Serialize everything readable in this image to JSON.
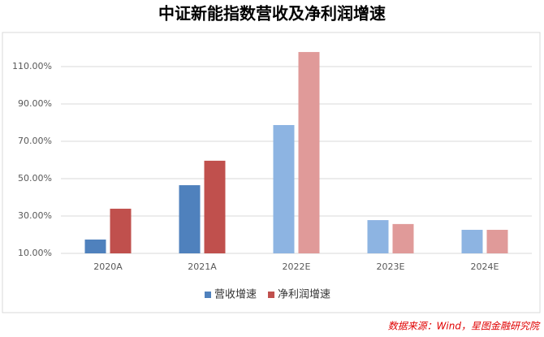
{
  "chart_data": {
    "type": "bar",
    "title": "中证新能指数营收及净利润增速",
    "categories": [
      "2020A",
      "2021A",
      "2022E",
      "2023E",
      "2024E"
    ],
    "series": [
      {
        "name": "营收增速",
        "color": "#4f81bd",
        "colors": [
          "#4f81bd",
          "#4f81bd",
          "#8db4e2",
          "#8db4e2",
          "#8db4e2"
        ],
        "values": [
          17.4,
          46.5,
          78.7,
          27.8,
          22.6
        ]
      },
      {
        "name": "净利润增速",
        "color": "#c0504d",
        "colors": [
          "#c0504d",
          "#c0504d",
          "#e09a99",
          "#e09a99",
          "#e09a99"
        ],
        "values": [
          33.9,
          59.6,
          117.8,
          25.7,
          22.6
        ]
      }
    ],
    "ylim": [
      10,
      130
    ],
    "yticks": [
      {
        "value": 10,
        "label": "10.00%"
      },
      {
        "value": 30,
        "label": "30.00%"
      },
      {
        "value": 50,
        "label": "50.00%"
      },
      {
        "value": 70,
        "label": "70.00%"
      },
      {
        "value": 90,
        "label": "90.00%"
      },
      {
        "value": 110,
        "label": "110.00%"
      }
    ],
    "grid": true,
    "legend": "bottom",
    "source": "数据来源：Wind，星图金融研究院"
  }
}
